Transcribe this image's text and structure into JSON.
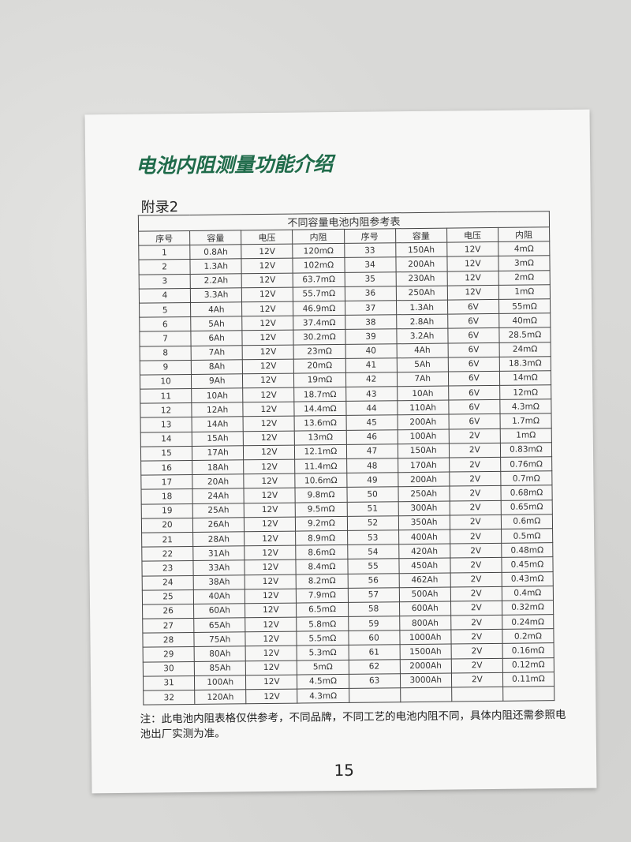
{
  "page": {
    "title": "电池内阻测量功能介绍",
    "appendix": "附录2",
    "table_caption": "不同容量电池内阻参考表",
    "headers": [
      "序号",
      "容量",
      "电压",
      "内阻",
      "序号",
      "容量",
      "电压",
      "内阻"
    ],
    "rows": [
      [
        "1",
        "0.8Ah",
        "12V",
        "120mΩ",
        "33",
        "150Ah",
        "12V",
        "4mΩ"
      ],
      [
        "2",
        "1.3Ah",
        "12V",
        "102mΩ",
        "34",
        "200Ah",
        "12V",
        "3mΩ"
      ],
      [
        "3",
        "2.2Ah",
        "12V",
        "63.7mΩ",
        "35",
        "230Ah",
        "12V",
        "2mΩ"
      ],
      [
        "4",
        "3.3Ah",
        "12V",
        "55.7mΩ",
        "36",
        "250Ah",
        "12V",
        "1mΩ"
      ],
      [
        "5",
        "4Ah",
        "12V",
        "46.9mΩ",
        "37",
        "1.3Ah",
        "6V",
        "55mΩ"
      ],
      [
        "6",
        "5Ah",
        "12V",
        "37.4mΩ",
        "38",
        "2.8Ah",
        "6V",
        "40mΩ"
      ],
      [
        "7",
        "6Ah",
        "12V",
        "30.2mΩ",
        "39",
        "3.2Ah",
        "6V",
        "28.5mΩ"
      ],
      [
        "8",
        "7Ah",
        "12V",
        "23mΩ",
        "40",
        "4Ah",
        "6V",
        "24mΩ"
      ],
      [
        "9",
        "8Ah",
        "12V",
        "20mΩ",
        "41",
        "5Ah",
        "6V",
        "18.3mΩ"
      ],
      [
        "10",
        "9Ah",
        "12V",
        "19mΩ",
        "42",
        "7Ah",
        "6V",
        "14mΩ"
      ],
      [
        "11",
        "10Ah",
        "12V",
        "18.7mΩ",
        "43",
        "10Ah",
        "6V",
        "12mΩ"
      ],
      [
        "12",
        "12Ah",
        "12V",
        "14.4mΩ",
        "44",
        "110Ah",
        "6V",
        "4.3mΩ"
      ],
      [
        "13",
        "14Ah",
        "12V",
        "13.6mΩ",
        "45",
        "200Ah",
        "6V",
        "1.7mΩ"
      ],
      [
        "14",
        "15Ah",
        "12V",
        "13mΩ",
        "46",
        "100Ah",
        "2V",
        "1mΩ"
      ],
      [
        "15",
        "17Ah",
        "12V",
        "12.1mΩ",
        "47",
        "150Ah",
        "2V",
        "0.83mΩ"
      ],
      [
        "16",
        "18Ah",
        "12V",
        "11.4mΩ",
        "48",
        "170Ah",
        "2V",
        "0.76mΩ"
      ],
      [
        "17",
        "20Ah",
        "12V",
        "10.6mΩ",
        "49",
        "200Ah",
        "2V",
        "0.7mΩ"
      ],
      [
        "18",
        "24Ah",
        "12V",
        "9.8mΩ",
        "50",
        "250Ah",
        "2V",
        "0.68mΩ"
      ],
      [
        "19",
        "25Ah",
        "12V",
        "9.5mΩ",
        "51",
        "300Ah",
        "2V",
        "0.65mΩ"
      ],
      [
        "20",
        "26Ah",
        "12V",
        "9.2mΩ",
        "52",
        "350Ah",
        "2V",
        "0.6mΩ"
      ],
      [
        "21",
        "28Ah",
        "12V",
        "8.9mΩ",
        "53",
        "400Ah",
        "2V",
        "0.5mΩ"
      ],
      [
        "22",
        "31Ah",
        "12V",
        "8.6mΩ",
        "54",
        "420Ah",
        "2V",
        "0.48mΩ"
      ],
      [
        "23",
        "33Ah",
        "12V",
        "8.4mΩ",
        "55",
        "450Ah",
        "2V",
        "0.45mΩ"
      ],
      [
        "24",
        "38Ah",
        "12V",
        "8.2mΩ",
        "56",
        "462Ah",
        "2V",
        "0.43mΩ"
      ],
      [
        "25",
        "40Ah",
        "12V",
        "7.9mΩ",
        "57",
        "500Ah",
        "2V",
        "0.4mΩ"
      ],
      [
        "26",
        "60Ah",
        "12V",
        "6.5mΩ",
        "58",
        "600Ah",
        "2V",
        "0.32mΩ"
      ],
      [
        "27",
        "65Ah",
        "12V",
        "5.8mΩ",
        "59",
        "800Ah",
        "2V",
        "0.24mΩ"
      ],
      [
        "28",
        "75Ah",
        "12V",
        "5.5mΩ",
        "60",
        "1000Ah",
        "2V",
        "0.2mΩ"
      ],
      [
        "29",
        "80Ah",
        "12V",
        "5.3mΩ",
        "61",
        "1500Ah",
        "2V",
        "0.16mΩ"
      ],
      [
        "30",
        "85Ah",
        "12V",
        "5mΩ",
        "62",
        "2000Ah",
        "2V",
        "0.12mΩ"
      ],
      [
        "31",
        "100Ah",
        "12V",
        "4.5mΩ",
        "63",
        "3000Ah",
        "2V",
        "0.11mΩ"
      ],
      [
        "32",
        "120Ah",
        "12V",
        "4.3mΩ",
        "",
        "",
        "",
        ""
      ]
    ],
    "note": "注：此电池内阻表格仅供参考，不同品牌，不同工艺的电池内阻不同，具体内阻还需参照电池出厂实测为准。",
    "page_number": "15"
  },
  "colors": {
    "title": "#1f6b4a"
  }
}
